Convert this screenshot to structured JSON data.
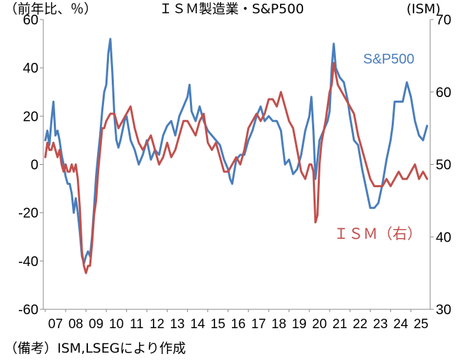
{
  "chart_data": {
    "type": "line",
    "title": "ＩＳＭ製造業・S&P500",
    "y_left_unit": "（前年比、％）",
    "y_right_unit": "(ISM)",
    "source_note": "（備考）ISM,LSEGにより作成",
    "x_ticks": [
      "07",
      "08",
      "09",
      "10",
      "11",
      "12",
      "13",
      "14",
      "15",
      "16",
      "17",
      "18",
      "19",
      "20",
      "21",
      "22",
      "23",
      "24",
      "25"
    ],
    "y_left_ticks": [
      "60",
      "40",
      "20",
      "0",
      "-20",
      "-40",
      "-60"
    ],
    "y_right_ticks": [
      "70",
      "60",
      "50",
      "40",
      "30"
    ],
    "y_left_range": [
      -60,
      60
    ],
    "y_right_range": [
      30,
      70
    ],
    "x_range": [
      2006.9,
      2025.95
    ],
    "grid": false,
    "series": [
      {
        "name": "S&P500",
        "axis": "left",
        "color": "#4a7ebb",
        "x": [
          2007.0,
          2007.1,
          2007.2,
          2007.3,
          2007.4,
          2007.5,
          2007.6,
          2007.7,
          2007.8,
          2007.9,
          2008.0,
          2008.1,
          2008.2,
          2008.3,
          2008.4,
          2008.5,
          2008.6,
          2008.7,
          2008.8,
          2008.9,
          2009.0,
          2009.1,
          2009.2,
          2009.3,
          2009.4,
          2009.5,
          2009.6,
          2009.7,
          2009.8,
          2009.9,
          2010.0,
          2010.1,
          2010.2,
          2010.3,
          2010.4,
          2010.5,
          2010.6,
          2010.7,
          2010.8,
          2010.9,
          2011.0,
          2011.2,
          2011.4,
          2011.6,
          2011.8,
          2012.0,
          2012.2,
          2012.4,
          2012.6,
          2012.8,
          2013.0,
          2013.2,
          2013.4,
          2013.6,
          2013.8,
          2014.0,
          2014.1,
          2014.2,
          2014.4,
          2014.6,
          2014.8,
          2015.0,
          2015.2,
          2015.4,
          2015.6,
          2015.8,
          2016.0,
          2016.1,
          2016.2,
          2016.4,
          2016.6,
          2016.8,
          2017.0,
          2017.2,
          2017.4,
          2017.6,
          2017.8,
          2018.0,
          2018.2,
          2018.4,
          2018.6,
          2018.8,
          2019.0,
          2019.2,
          2019.4,
          2019.6,
          2019.8,
          2020.0,
          2020.1,
          2020.2,
          2020.3,
          2020.5,
          2020.7,
          2020.9,
          2021.0,
          2021.1,
          2021.2,
          2021.3,
          2021.5,
          2021.7,
          2021.9,
          2022.0,
          2022.2,
          2022.4,
          2022.6,
          2022.8,
          2022.9,
          2023.0,
          2023.2,
          2023.4,
          2023.6,
          2023.8,
          2024.0,
          2024.1,
          2024.2,
          2024.4,
          2024.6,
          2024.8,
          2025.0,
          2025.2,
          2025.4,
          2025.6,
          2025.8
        ],
        "y": [
          10,
          14,
          8,
          18,
          26,
          12,
          14,
          10,
          4,
          0,
          -5,
          -8,
          -8,
          -12,
          -20,
          -14,
          -20,
          -28,
          -38,
          -41,
          -38,
          -36,
          -38,
          -30,
          -18,
          -5,
          4,
          12,
          22,
          30,
          33,
          46,
          52,
          38,
          20,
          10,
          7,
          10,
          14,
          18,
          20,
          10,
          6,
          0,
          4,
          10,
          2,
          6,
          4,
          12,
          16,
          18,
          12,
          20,
          24,
          28,
          33,
          22,
          18,
          24,
          18,
          14,
          12,
          10,
          8,
          2,
          -2,
          -6,
          -8,
          2,
          4,
          4,
          10,
          14,
          20,
          24,
          18,
          20,
          18,
          18,
          14,
          0,
          2,
          -4,
          -2,
          4,
          14,
          20,
          28,
          14,
          -6,
          10,
          14,
          18,
          22,
          40,
          50,
          40,
          36,
          34,
          26,
          20,
          10,
          8,
          -2,
          -10,
          -14,
          -18,
          -18,
          -16,
          -8,
          2,
          10,
          16,
          26,
          26,
          26,
          34,
          28,
          18,
          12,
          10,
          16
        ]
      },
      {
        "name": "ＩＳＭ（右）",
        "axis": "right",
        "color": "#c0504d",
        "x": [
          2007.0,
          2007.1,
          2007.2,
          2007.3,
          2007.4,
          2007.5,
          2007.6,
          2007.7,
          2007.8,
          2007.9,
          2008.0,
          2008.1,
          2008.2,
          2008.3,
          2008.4,
          2008.5,
          2008.6,
          2008.7,
          2008.8,
          2008.9,
          2009.0,
          2009.1,
          2009.2,
          2009.3,
          2009.4,
          2009.5,
          2009.6,
          2009.7,
          2009.8,
          2009.9,
          2010.0,
          2010.2,
          2010.4,
          2010.6,
          2010.8,
          2011.0,
          2011.2,
          2011.4,
          2011.6,
          2011.8,
          2012.0,
          2012.2,
          2012.4,
          2012.6,
          2012.8,
          2013.0,
          2013.2,
          2013.4,
          2013.6,
          2013.8,
          2014.0,
          2014.2,
          2014.4,
          2014.6,
          2014.8,
          2015.0,
          2015.2,
          2015.4,
          2015.6,
          2015.8,
          2016.0,
          2016.2,
          2016.4,
          2016.6,
          2016.8,
          2017.0,
          2017.2,
          2017.4,
          2017.6,
          2017.8,
          2018.0,
          2018.2,
          2018.4,
          2018.6,
          2018.8,
          2019.0,
          2019.2,
          2019.4,
          2019.6,
          2019.8,
          2020.0,
          2020.1,
          2020.2,
          2020.3,
          2020.4,
          2020.5,
          2020.6,
          2020.8,
          2021.0,
          2021.1,
          2021.2,
          2021.4,
          2021.6,
          2021.8,
          2022.0,
          2022.2,
          2022.4,
          2022.6,
          2022.8,
          2023.0,
          2023.2,
          2023.4,
          2023.6,
          2023.8,
          2024.0,
          2024.2,
          2024.4,
          2024.6,
          2024.8,
          2025.0,
          2025.2,
          2025.4,
          2025.6,
          2025.8
        ],
        "y": [
          51,
          53,
          52,
          52,
          53,
          52,
          51,
          52,
          50,
          49,
          50,
          49,
          49,
          50,
          49,
          50,
          48,
          44,
          38,
          36,
          35,
          36,
          36,
          39,
          43,
          45,
          49,
          52,
          55,
          55,
          56,
          57,
          57,
          55,
          56,
          57,
          58,
          55,
          53,
          52,
          53,
          54,
          52,
          50,
          51,
          53,
          51,
          52,
          54,
          56,
          56,
          55,
          54,
          56,
          57,
          53,
          52,
          53,
          51,
          49,
          49,
          50,
          51,
          50,
          52,
          55,
          56,
          57,
          56,
          57,
          59,
          59,
          58,
          60,
          58,
          56,
          55,
          52,
          49,
          48,
          50,
          50,
          49,
          42,
          43,
          50,
          53,
          56,
          60,
          61,
          64,
          61,
          60,
          59,
          58,
          57,
          54,
          52,
          50,
          48,
          47,
          47,
          47,
          48,
          47,
          48,
          49,
          48,
          48,
          49,
          50,
          48,
          49,
          48
        ]
      }
    ]
  }
}
